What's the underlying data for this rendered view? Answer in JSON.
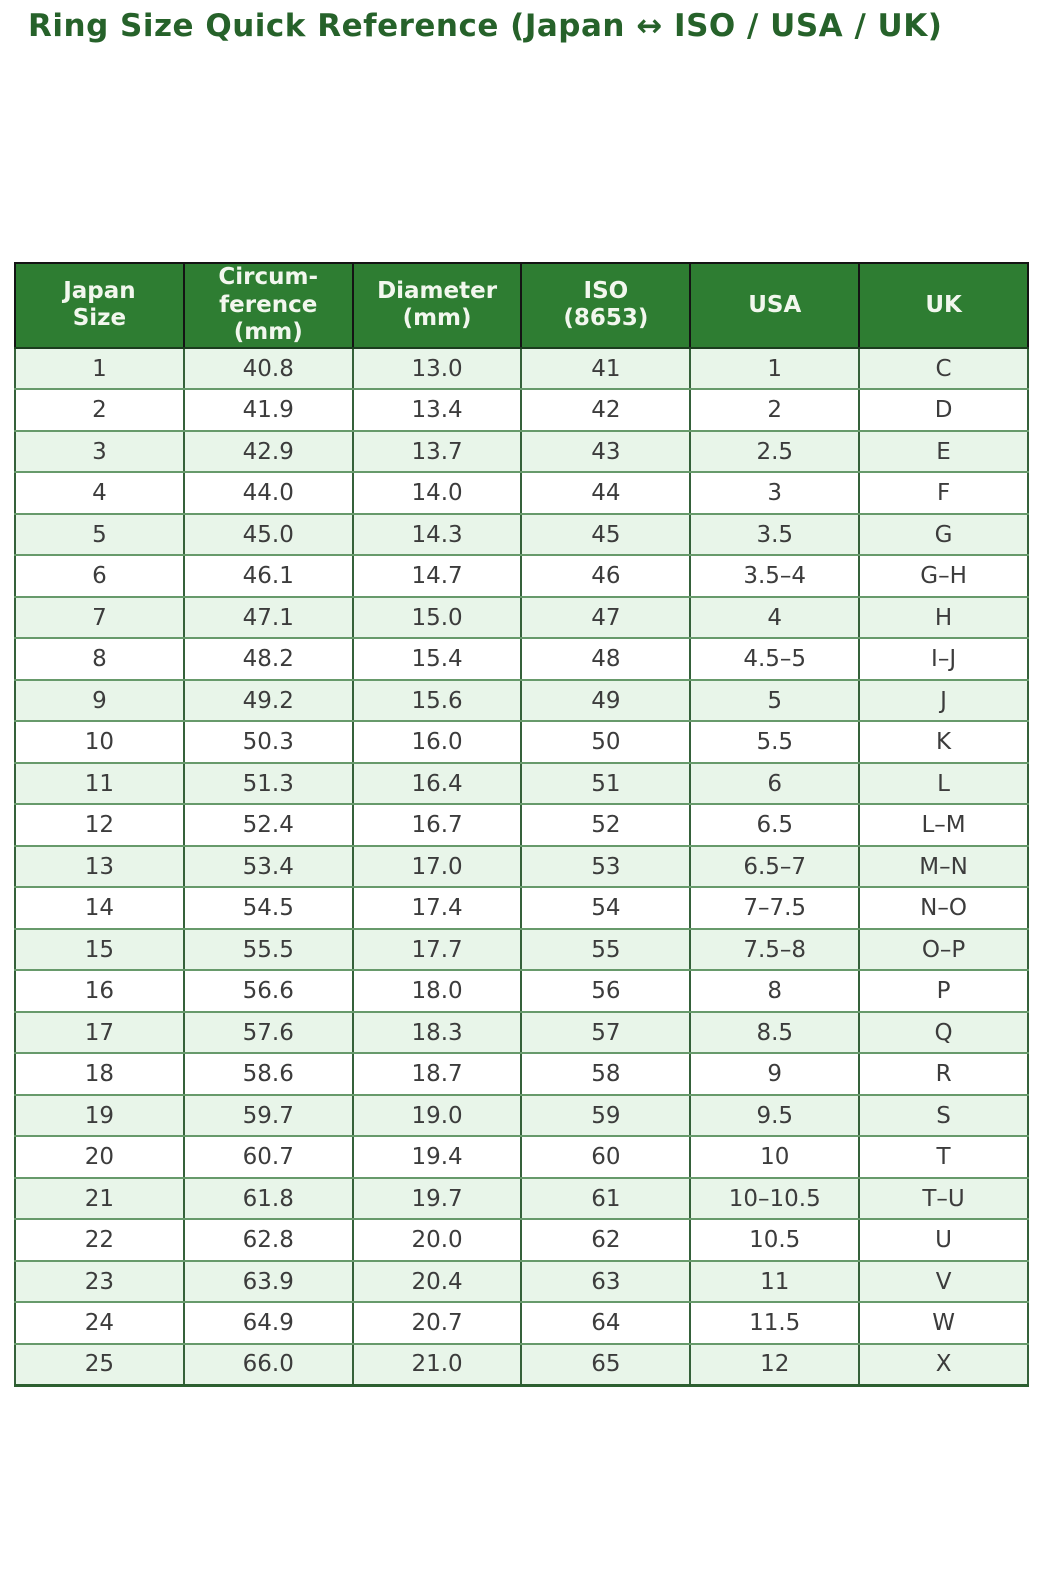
{
  "page": {
    "title": "Ring Size Quick Reference (Japan ↔ ISO / USA / UK)"
  },
  "colors": {
    "title_color": "#26622a",
    "header_bg": "#2e7d32",
    "header_text": "#f2f7ee",
    "row_alt_bg": "#e8f5e9",
    "row_bg": "#ffffff",
    "grid_green": "#679a6b",
    "grid_dark_green": "#35613a",
    "header_divider_black": "#141414",
    "body_text": "#3c3c3c"
  },
  "chart_data": {
    "type": "table",
    "title": "Ring Size Quick Reference (Japan ↔ ISO / USA / UK)",
    "columns": [
      "Japan Size",
      "Circumference (mm)",
      "Diameter (mm)",
      "ISO (8653)",
      "USA",
      "UK"
    ],
    "column_keys": [
      "japan-size",
      "circumference-mm",
      "diameter-mm",
      "iso-8653",
      "usa",
      "uk"
    ],
    "header_lines": [
      "Japan\nSize",
      "Circum-\nference\n(mm)",
      "Diameter\n(mm)",
      "ISO\n(8653)",
      "USA",
      "UK"
    ],
    "rows": [
      [
        "1",
        "40.8",
        "13.0",
        "41",
        "1",
        "C"
      ],
      [
        "2",
        "41.9",
        "13.4",
        "42",
        "2",
        "D"
      ],
      [
        "3",
        "42.9",
        "13.7",
        "43",
        "2.5",
        "E"
      ],
      [
        "4",
        "44.0",
        "14.0",
        "44",
        "3",
        "F"
      ],
      [
        "5",
        "45.0",
        "14.3",
        "45",
        "3.5",
        "G"
      ],
      [
        "6",
        "46.1",
        "14.7",
        "46",
        "3.5–4",
        "G–H"
      ],
      [
        "7",
        "47.1",
        "15.0",
        "47",
        "4",
        "H"
      ],
      [
        "8",
        "48.2",
        "15.4",
        "48",
        "4.5–5",
        "I–J"
      ],
      [
        "9",
        "49.2",
        "15.6",
        "49",
        "5",
        "J"
      ],
      [
        "10",
        "50.3",
        "16.0",
        "50",
        "5.5",
        "K"
      ],
      [
        "11",
        "51.3",
        "16.4",
        "51",
        "6",
        "L"
      ],
      [
        "12",
        "52.4",
        "16.7",
        "52",
        "6.5",
        "L–M"
      ],
      [
        "13",
        "53.4",
        "17.0",
        "53",
        "6.5–7",
        "M–N"
      ],
      [
        "14",
        "54.5",
        "17.4",
        "54",
        "7–7.5",
        "N–O"
      ],
      [
        "15",
        "55.5",
        "17.7",
        "55",
        "7.5–8",
        "O–P"
      ],
      [
        "16",
        "56.6",
        "18.0",
        "56",
        "8",
        "P"
      ],
      [
        "17",
        "57.6",
        "18.3",
        "57",
        "8.5",
        "Q"
      ],
      [
        "18",
        "58.6",
        "18.7",
        "58",
        "9",
        "R"
      ],
      [
        "19",
        "59.7",
        "19.0",
        "59",
        "9.5",
        "S"
      ],
      [
        "20",
        "60.7",
        "19.4",
        "60",
        "10",
        "T"
      ],
      [
        "21",
        "61.8",
        "19.7",
        "61",
        "10–10.5",
        "T–U"
      ],
      [
        "22",
        "62.8",
        "20.0",
        "62",
        "10.5",
        "U"
      ],
      [
        "23",
        "63.9",
        "20.4",
        "63",
        "11",
        "V"
      ],
      [
        "24",
        "64.9",
        "20.7",
        "64",
        "11.5",
        "W"
      ],
      [
        "25",
        "66.0",
        "21.0",
        "65",
        "12",
        "X"
      ]
    ]
  }
}
